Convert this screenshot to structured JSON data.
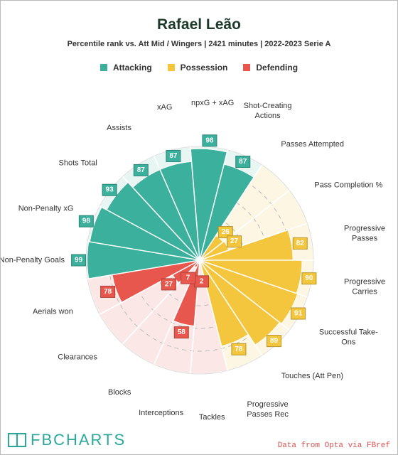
{
  "chart_data": {
    "type": "pizza",
    "title": "Rafael Leão",
    "subtitle": "Percentile rank vs. Att Mid / Wingers | 2421 minutes | 2022-2023 Serie A",
    "categories": [
      "npxG + xAG",
      "Shot-Creating Actions",
      "Passes Attempted",
      "Pass Completion %",
      "Progressive Passes",
      "Progressive Carries",
      "Successful Take-Ons",
      "Touches (Att Pen)",
      "Progressive Passes Rec",
      "Tackles",
      "Interceptions",
      "Blocks",
      "Clearances",
      "Aerials won",
      "Non-Penalty Goals",
      "Non-Penalty xG",
      "Shots Total",
      "Assists",
      "xAG"
    ],
    "series": [
      {
        "name": "Attacking",
        "color": "#3bb09d",
        "background": "#e8f6f3",
        "values": [
          98,
          87,
          null,
          null,
          null,
          null,
          null,
          null,
          null,
          null,
          null,
          null,
          null,
          null,
          99,
          98,
          93,
          87,
          87
        ]
      },
      {
        "name": "Possession",
        "color": "#f4c63d",
        "background": "#fdf6e2",
        "values": [
          null,
          null,
          26,
          27,
          82,
          90,
          91,
          89,
          78,
          null,
          null,
          null,
          null,
          null,
          null,
          null,
          null,
          null,
          null
        ]
      },
      {
        "name": "Defending",
        "color": "#e8574d",
        "background": "#fbe8e6",
        "values": [
          null,
          null,
          null,
          null,
          null,
          null,
          null,
          null,
          null,
          2,
          58,
          7,
          27,
          78,
          null,
          null,
          null,
          null,
          null
        ]
      }
    ],
    "rlim": [
      0,
      100
    ],
    "rticks": [
      20,
      40,
      60,
      80
    ],
    "logo": "FBCHARTS",
    "source": "Data from Opta via FBref"
  }
}
